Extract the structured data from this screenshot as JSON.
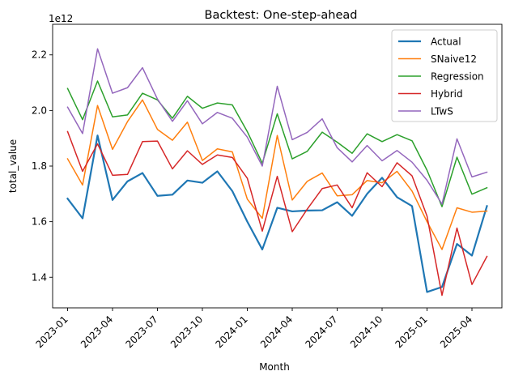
{
  "chart_data": {
    "type": "line",
    "title": "Backtest: One-step-ahead",
    "xlabel": "Month",
    "ylabel": "total_value",
    "y_offset_label": "1e12",
    "ylim": [
      1.29,
      2.31
    ],
    "yticks": [
      1.4,
      1.6,
      1.8,
      2.0,
      2.2
    ],
    "ytick_labels": [
      "1.4",
      "1.6",
      "1.8",
      "2.0",
      "2.2"
    ],
    "xlim": [
      "2022-12",
      "2025-06"
    ],
    "xticks": [
      "2023-01",
      "2023-04",
      "2023-07",
      "2023-10",
      "2024-01",
      "2024-04",
      "2024-07",
      "2024-10",
      "2025-01",
      "2025-04"
    ],
    "x": [
      "2023-01",
      "2023-02",
      "2023-03",
      "2023-04",
      "2023-05",
      "2023-06",
      "2023-07",
      "2023-08",
      "2023-09",
      "2023-10",
      "2023-11",
      "2023-12",
      "2024-01",
      "2024-02",
      "2024-03",
      "2024-04",
      "2024-05",
      "2024-06",
      "2024-07",
      "2024-08",
      "2024-09",
      "2024-10",
      "2024-11",
      "2024-12",
      "2025-01",
      "2025-02",
      "2025-03",
      "2025-04",
      "2025-05"
    ],
    "grid": false,
    "legend_position": "top-right",
    "series": [
      {
        "name": "Actual",
        "color": "#1f77b4",
        "width": 2.2,
        "values": [
          1.683,
          1.612,
          1.91,
          1.678,
          1.745,
          1.775,
          1.693,
          1.697,
          1.748,
          1.74,
          1.781,
          1.71,
          1.6,
          1.5,
          1.65,
          1.637,
          1.64,
          1.641,
          1.67,
          1.621,
          1.7,
          1.758,
          1.688,
          1.656,
          1.347,
          1.365,
          1.52,
          1.478,
          1.656
        ]
      },
      {
        "name": "SNaive12",
        "color": "#ff7f0e",
        "width": 1.5,
        "values": [
          1.826,
          1.732,
          2.018,
          1.86,
          1.96,
          2.038,
          1.932,
          1.893,
          1.958,
          1.82,
          1.862,
          1.851,
          1.681,
          1.612,
          1.91,
          1.678,
          1.745,
          1.775,
          1.693,
          1.697,
          1.748,
          1.74,
          1.781,
          1.71,
          1.6,
          1.5,
          1.65,
          1.634,
          1.638
        ]
      },
      {
        "name": "Regression",
        "color": "#2ca02c",
        "width": 1.5,
        "values": [
          2.079,
          1.967,
          2.106,
          1.977,
          1.984,
          2.062,
          2.038,
          1.972,
          2.051,
          2.008,
          2.027,
          2.02,
          1.924,
          1.81,
          1.988,
          1.826,
          1.853,
          1.922,
          1.886,
          1.846,
          1.916,
          1.888,
          1.913,
          1.891,
          1.785,
          1.654,
          1.832,
          1.699,
          1.722
        ]
      },
      {
        "name": "Hybrid",
        "color": "#d62728",
        "width": 1.5,
        "values": [
          1.924,
          1.781,
          1.88,
          1.767,
          1.77,
          1.888,
          1.89,
          1.79,
          1.855,
          1.806,
          1.84,
          1.831,
          1.756,
          1.566,
          1.763,
          1.564,
          1.645,
          1.719,
          1.732,
          1.65,
          1.776,
          1.726,
          1.812,
          1.765,
          1.62,
          1.335,
          1.577,
          1.374,
          1.475
        ]
      },
      {
        "name": "LTwS",
        "color": "#9467bd",
        "width": 1.5,
        "values": [
          2.012,
          1.917,
          2.222,
          2.062,
          2.082,
          2.154,
          2.041,
          1.961,
          2.035,
          1.952,
          1.993,
          1.972,
          1.904,
          1.8,
          2.087,
          1.895,
          1.921,
          1.97,
          1.866,
          1.815,
          1.874,
          1.819,
          1.856,
          1.814,
          1.749,
          1.663,
          1.898,
          1.761,
          1.778
        ]
      }
    ]
  }
}
